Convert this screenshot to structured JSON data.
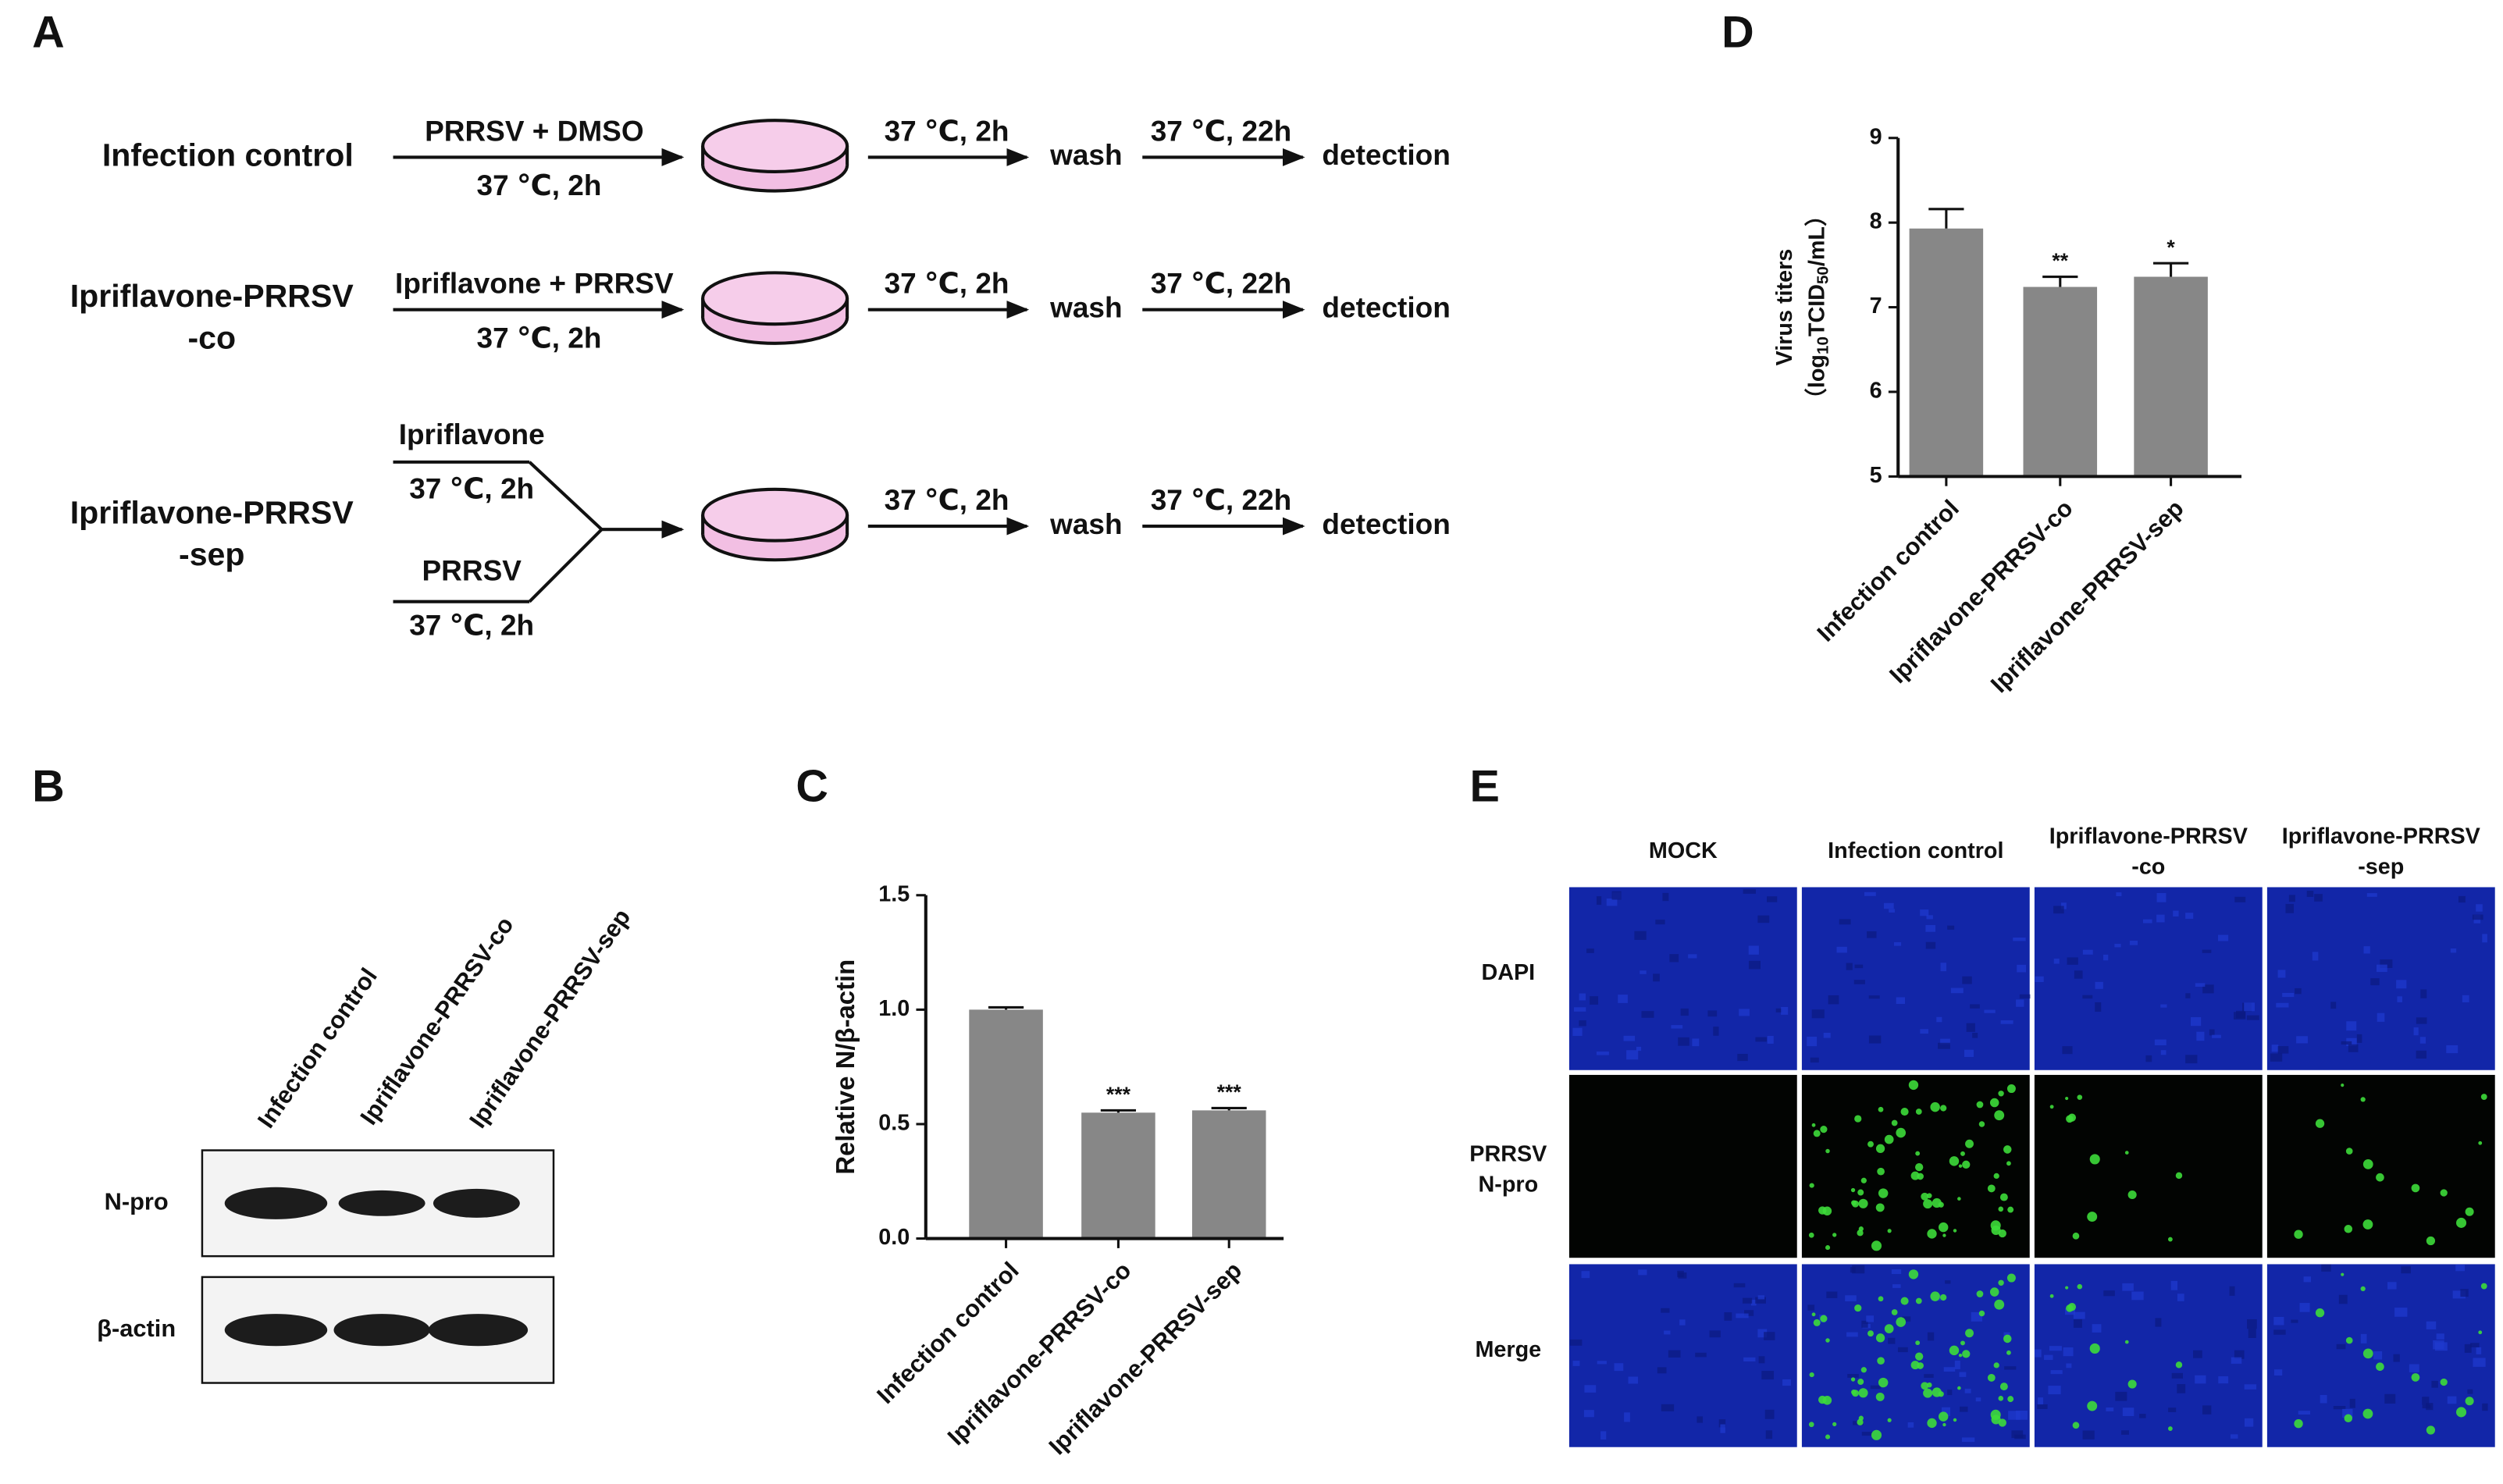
{
  "panel_labels": [
    "A",
    "B",
    "C",
    "D",
    "E"
  ],
  "scheme": {
    "rows": [
      {
        "label": [
          "Infection control"
        ],
        "treatment": {
          "above": "PRRSV + DMSO",
          "below": "37 ℃, 2h"
        },
        "steps": [
          "37 ℃, 2h",
          "wash",
          "37 ℃, 22h",
          "detection"
        ]
      },
      {
        "label": [
          "Ipriflavone-PRRSV",
          "-co"
        ],
        "treatment": {
          "above": "Ipriflavone + PRRSV",
          "below": "37 ℃, 2h"
        },
        "steps": [
          "37 ℃, 2h",
          "wash",
          "37 ℃, 22h",
          "detection"
        ]
      },
      {
        "label": [
          "Ipriflavone-PRRSV",
          "-sep"
        ],
        "treatment": {
          "upper": "Ipriflavone",
          "upper_condition": "37 ℃, 2h",
          "lower": "PRRSV",
          "lower_condition": "37 ℃, 2h"
        },
        "steps": [
          "37 ℃, 2h",
          "wash",
          "37 ℃, 22h",
          "detection"
        ]
      }
    ]
  },
  "blot": {
    "lanes": [
      "Infection control",
      "Ipriflavone-PRRSV-co",
      "Ipriflavone-PRRSV-sep"
    ],
    "bands": [
      "N-pro",
      "β-actin"
    ]
  },
  "chart_data": [
    {
      "type": "bar",
      "categories": [
        "Infection control",
        "Ipriflavone-PRRSV-co",
        "Ipriflavone-PRRSV-sep"
      ],
      "values": [
        1.0,
        0.55,
        0.56
      ],
      "errors": [
        0.01,
        0.01,
        0.01
      ],
      "annotations": [
        null,
        "***",
        "***"
      ],
      "color": "#878787",
      "ylabel": "Relative N/β-actin",
      "ylim": [
        0,
        1.5
      ],
      "yticks": [
        {
          "value": 0,
          "label": "0.0"
        },
        0.5,
        {
          "value": 1,
          "label": "1.0"
        },
        1.5
      ]
    },
    {
      "type": "bar",
      "categories": [
        "Infection control",
        "Ipriflavone-PRRSV-co",
        "Ipriflavone-PRRSV-sep"
      ],
      "values": [
        7.93,
        7.24,
        7.36
      ],
      "errors": [
        0.23,
        0.12,
        0.16
      ],
      "annotations": [
        null,
        "**",
        "*"
      ],
      "color": "#878787",
      "ylabel": {
        "text": "Virus titers",
        "unit": [
          "（log",
          "10",
          "TCID",
          "50",
          "/mL）"
        ]
      },
      "ylim": [
        5,
        9
      ],
      "yticks": [
        5,
        6,
        7,
        8,
        9
      ]
    }
  ],
  "microscopy": {
    "columns": [
      [
        "MOCK"
      ],
      [
        "Infection control"
      ],
      [
        "Ipriflavone-PRRSV",
        "-co"
      ],
      [
        "Ipriflavone-PRRSV",
        "-sep"
      ]
    ],
    "rows": [
      [
        "DAPI"
      ],
      [
        "PRRSV",
        "N-pro"
      ],
      [
        "Merge"
      ]
    ]
  }
}
